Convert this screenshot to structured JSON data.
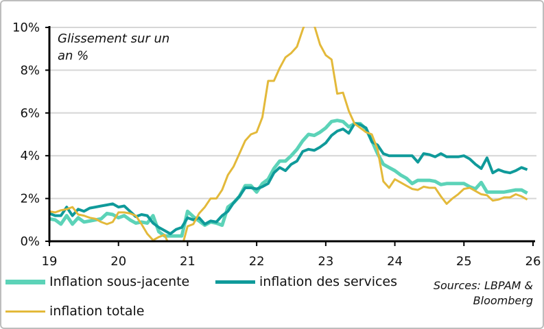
{
  "chart_data": {
    "type": "line",
    "annotation": "Glissement sur un an %",
    "source": "Sources: LBPAM & Bloomberg",
    "x_start": "2019-01",
    "frequency": "monthly",
    "x_tick_labels": [
      "19",
      "20",
      "21",
      "22",
      "23",
      "24",
      "25",
      "26"
    ],
    "y_tick_labels": [
      "0%",
      "2%",
      "4%",
      "6%",
      "8%",
      "10%"
    ],
    "ylim": [
      0,
      10
    ],
    "grid": true,
    "legend_position": "bottom",
    "series": [
      {
        "name": "Inflation sous-jacente",
        "color": "#5cd3b8",
        "values": [
          1.05,
          1.0,
          0.8,
          1.2,
          0.8,
          1.1,
          0.9,
          0.95,
          1.0,
          1.05,
          1.3,
          1.25,
          1.1,
          1.2,
          1.0,
          0.85,
          0.9,
          0.85,
          1.2,
          0.45,
          0.25,
          0.25,
          0.25,
          0.25,
          1.4,
          1.15,
          0.95,
          0.75,
          0.9,
          0.85,
          0.75,
          1.6,
          1.8,
          2.1,
          2.6,
          2.6,
          2.3,
          2.7,
          2.9,
          3.4,
          3.75,
          3.75,
          4.0,
          4.3,
          4.7,
          5.0,
          4.95,
          5.1,
          5.3,
          5.6,
          5.65,
          5.6,
          5.35,
          5.5,
          5.5,
          5.25,
          4.7,
          4.1,
          3.6,
          3.45,
          3.3,
          3.1,
          2.95,
          2.7,
          2.85,
          2.85,
          2.85,
          2.8,
          2.65,
          2.7,
          2.7,
          2.7,
          2.7,
          2.55,
          2.45,
          2.75,
          2.3,
          2.3,
          2.3,
          2.3,
          2.35,
          2.4,
          2.4,
          2.25
        ]
      },
      {
        "name": "inflation des services",
        "color": "#0f9a9a",
        "values": [
          1.3,
          1.2,
          1.2,
          1.6,
          1.2,
          1.5,
          1.4,
          1.55,
          1.6,
          1.65,
          1.7,
          1.75,
          1.6,
          1.65,
          1.4,
          1.15,
          1.25,
          1.2,
          0.85,
          0.65,
          0.5,
          0.35,
          0.55,
          0.65,
          1.1,
          1.0,
          1.1,
          0.8,
          0.95,
          0.9,
          1.2,
          1.4,
          1.8,
          2.1,
          2.5,
          2.5,
          2.45,
          2.55,
          2.7,
          3.2,
          3.45,
          3.3,
          3.6,
          3.75,
          4.2,
          4.3,
          4.25,
          4.4,
          4.6,
          4.95,
          5.15,
          5.25,
          5.05,
          5.5,
          5.45,
          5.3,
          4.65,
          4.5,
          4.1,
          4.0,
          4.0,
          4.0,
          4.0,
          4.0,
          3.7,
          4.1,
          4.05,
          3.95,
          4.1,
          3.95,
          3.95,
          3.95,
          4.0,
          3.85,
          3.6,
          3.4,
          3.9,
          3.2,
          3.35,
          3.25,
          3.2,
          3.3,
          3.45,
          3.35
        ]
      },
      {
        "name": "inflation totale",
        "color": "#e3b93a",
        "values": [
          1.4,
          1.35,
          1.45,
          1.5,
          1.6,
          1.25,
          1.2,
          1.1,
          1.05,
          0.9,
          0.8,
          0.9,
          1.35,
          1.35,
          1.3,
          1.2,
          0.8,
          0.35,
          0.05,
          0.2,
          0.3,
          -0.3,
          -0.3,
          -0.3,
          0.7,
          0.8,
          1.3,
          1.6,
          2.0,
          2.0,
          2.4,
          3.1,
          3.5,
          4.1,
          4.7,
          5.0,
          5.1,
          5.8,
          7.5,
          7.5,
          8.1,
          8.6,
          8.8,
          9.1,
          9.9,
          10.6,
          10.1,
          9.2,
          8.7,
          8.5,
          6.9,
          6.95,
          6.1,
          5.5,
          5.3,
          5.1,
          5.0,
          4.3,
          2.8,
          2.5,
          2.9,
          2.75,
          2.6,
          2.45,
          2.4,
          2.55,
          2.5,
          2.5,
          2.1,
          1.75,
          2.0,
          2.2,
          2.45,
          2.5,
          2.35,
          2.2,
          2.15,
          1.9,
          1.95,
          2.05,
          2.05,
          2.2,
          2.1,
          1.95
        ]
      }
    ]
  }
}
